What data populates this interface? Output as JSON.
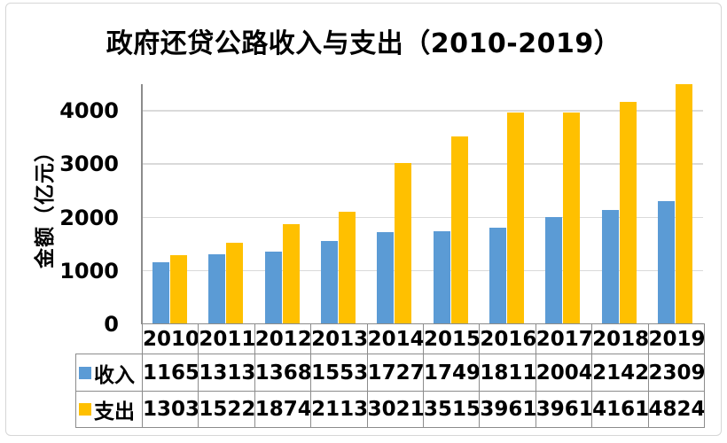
{
  "title": "政府还贷公路收入与支出（2010-2019）",
  "y_axis": {
    "label": "金额（亿元）"
  },
  "chart_data": {
    "type": "bar",
    "title": "政府还贷公路收入与支出（2010-2019）",
    "ylabel": "金额（亿元）",
    "xlabel": "",
    "categories": [
      "2010",
      "2011",
      "2012",
      "2013",
      "2014",
      "2015",
      "2016",
      "2017",
      "2018",
      "2019"
    ],
    "series": [
      {
        "name": "收入",
        "color": "#5B9BD5",
        "values": [
          1165,
          1313,
          1368,
          1553,
          1727,
          1749,
          1811,
          2004,
          2142,
          2309
        ]
      },
      {
        "name": "支出",
        "color": "#FFC000",
        "values": [
          1303,
          1522,
          1874,
          2113,
          3021,
          3515,
          3961,
          3961,
          4161,
          4824
        ]
      }
    ],
    "ylim": [
      0,
      4500
    ],
    "yticks": [
      0,
      1000,
      2000,
      3000,
      4000
    ],
    "grid": true,
    "legend_position": "table-below",
    "note_clipped_value": "4824 exceeds axis max and is clipped at plot top"
  },
  "colors": {
    "income_bar": "#5B9BD5",
    "expense_bar": "#FFC000",
    "gridline": "#DADADA",
    "axis_and_table_border": "#8C8C8C",
    "chart_frame_border": "#D6D6D6",
    "text": "#000000"
  }
}
